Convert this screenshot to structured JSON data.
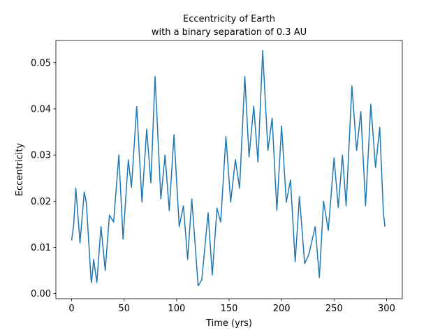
{
  "chart_data": {
    "type": "line",
    "title": [
      "Eccentricity of Earth",
      "with a binary separation of 0.3 AU"
    ],
    "xlabel": "Time (yrs)",
    "ylabel": "Eccentricity",
    "color": "#1f77b4",
    "x": [
      0,
      2,
      4,
      8,
      12,
      14,
      18.5,
      19,
      21,
      24,
      28,
      32,
      36,
      40,
      45,
      49,
      54,
      57,
      62,
      67,
      71.5,
      75.5,
      79.5,
      85,
      89,
      93,
      97.5,
      102.5,
      106.5,
      110.5,
      114.5,
      120.5,
      124,
      130,
      134,
      138.5,
      142,
      147,
      151.5,
      156,
      160,
      165,
      169,
      173.5,
      177.5,
      182,
      187,
      191,
      195.5,
      200,
      204.5,
      208.5,
      213,
      217,
      222,
      226,
      232,
      236,
      240,
      244.5,
      250,
      254,
      258,
      261.5,
      267,
      271.5,
      275.5,
      280,
      285,
      289.5,
      293.5,
      297,
      298.5
    ],
    "values": [
      0.0115,
      0.015,
      0.0228,
      0.011,
      0.022,
      0.0198,
      0.003,
      0.0024,
      0.0074,
      0.0024,
      0.0145,
      0.005,
      0.017,
      0.0155,
      0.03,
      0.0118,
      0.029,
      0.023,
      0.0405,
      0.0198,
      0.0356,
      0.024,
      0.047,
      0.0205,
      0.03,
      0.018,
      0.0344,
      0.0145,
      0.019,
      0.0074,
      0.0205,
      0.0017,
      0.003,
      0.0175,
      0.004,
      0.0185,
      0.0155,
      0.034,
      0.0198,
      0.029,
      0.0228,
      0.047,
      0.0296,
      0.0406,
      0.0285,
      0.0526,
      0.031,
      0.038,
      0.018,
      0.0363,
      0.0198,
      0.0246,
      0.0069,
      0.021,
      0.0065,
      0.0085,
      0.0145,
      0.0035,
      0.02,
      0.0137,
      0.0294,
      0.0186,
      0.03,
      0.019,
      0.045,
      0.031,
      0.0394,
      0.019,
      0.041,
      0.0273,
      0.036,
      0.0175,
      0.0145
    ],
    "xlim": [
      -15,
      315
    ],
    "ylim": [
      -0.0011,
      0.0548
    ],
    "xticks": [
      0,
      50,
      100,
      150,
      200,
      250,
      300
    ],
    "yticks": [
      {
        "value": 0,
        "label": "0.00"
      },
      {
        "value": 0.01,
        "label": "0.01"
      },
      {
        "value": 0.02,
        "label": "0.02"
      },
      {
        "value": 0.03,
        "label": "0.03"
      },
      {
        "value": 0.04,
        "label": "0.04"
      },
      {
        "value": 0.05,
        "label": "0.05"
      }
    ]
  }
}
